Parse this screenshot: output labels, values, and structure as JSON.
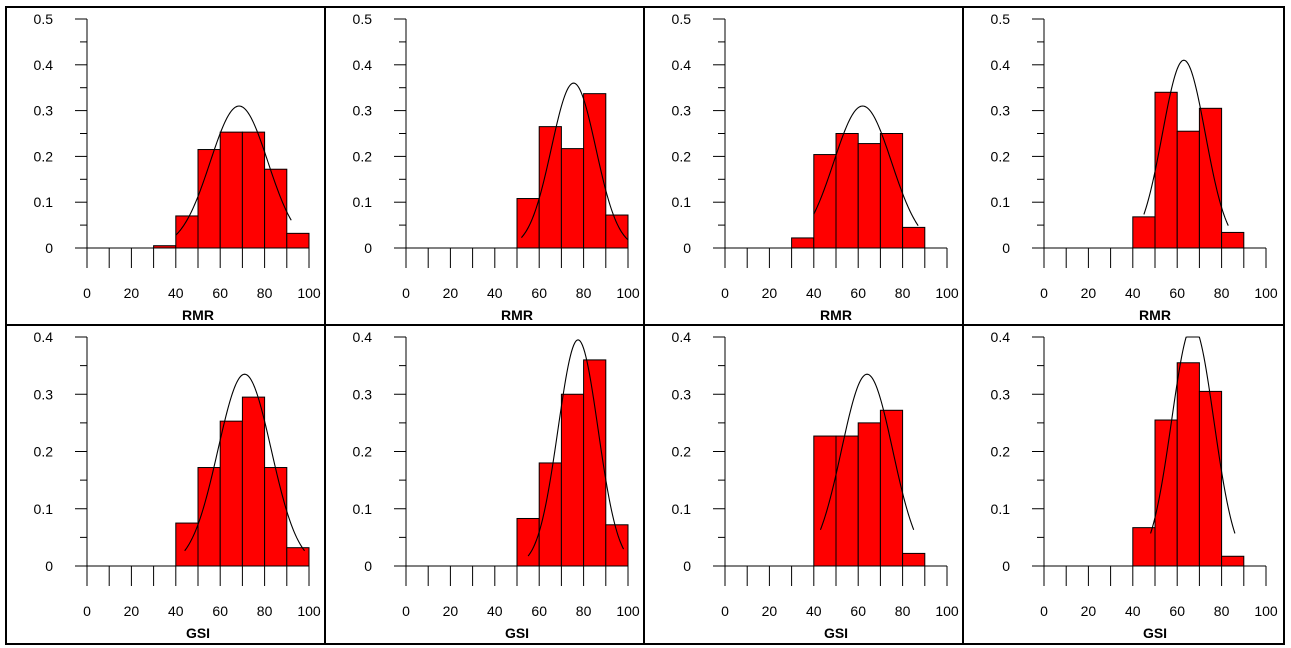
{
  "chart_data": [
    {
      "type": "bar",
      "xlabel": "RMR",
      "ylim": [
        0,
        0.5
      ],
      "yticks": [
        "0",
        "0.1",
        "0.2",
        "0.3",
        "0.4",
        "0.5"
      ],
      "xlim": [
        0,
        100
      ],
      "xticks": [
        "0",
        "20",
        "40",
        "60",
        "80",
        "100"
      ],
      "bins": [
        [
          30,
          40,
          0.005
        ],
        [
          40,
          50,
          0.07
        ],
        [
          50,
          60,
          0.215
        ],
        [
          60,
          70,
          0.253
        ],
        [
          70,
          80,
          0.253
        ],
        [
          80,
          90,
          0.172
        ],
        [
          90,
          100,
          0.032
        ]
      ],
      "curve": {
        "mean": 68.5,
        "peak": 0.31,
        "sd": 13,
        "from": 40,
        "to": 92
      }
    },
    {
      "type": "bar",
      "xlabel": "RMR",
      "ylim": [
        0,
        0.5
      ],
      "yticks": [
        "0",
        "0.1",
        "0.2",
        "0.3",
        "0.4",
        "0.5"
      ],
      "xlim": [
        0,
        100
      ],
      "xticks": [
        "0",
        "20",
        "40",
        "60",
        "80",
        "100"
      ],
      "bins": [
        [
          50,
          60,
          0.108
        ],
        [
          60,
          70,
          0.265
        ],
        [
          70,
          80,
          0.217
        ],
        [
          80,
          90,
          0.337
        ],
        [
          90,
          100,
          0.072
        ]
      ],
      "curve": {
        "mean": 75.5,
        "peak": 0.36,
        "sd": 10,
        "from": 52,
        "to": 100
      }
    },
    {
      "type": "bar",
      "xlabel": "RMR",
      "ylim": [
        0,
        0.5
      ],
      "yticks": [
        "0",
        "0.1",
        "0.2",
        "0.3",
        "0.4",
        "0.5"
      ],
      "xlim": [
        0,
        100
      ],
      "xticks": [
        "0",
        "20",
        "40",
        "60",
        "80",
        "100"
      ],
      "bins": [
        [
          30,
          40,
          0.022
        ],
        [
          40,
          50,
          0.204
        ],
        [
          50,
          60,
          0.25
        ],
        [
          60,
          70,
          0.228
        ],
        [
          70,
          80,
          0.25
        ],
        [
          80,
          90,
          0.045
        ]
      ],
      "curve": {
        "mean": 62,
        "peak": 0.31,
        "sd": 13,
        "from": 40,
        "to": 87
      }
    },
    {
      "type": "bar",
      "xlabel": "RMR",
      "ylim": [
        0,
        0.5
      ],
      "yticks": [
        "0",
        "0.1",
        "0.2",
        "0.3",
        "0.4",
        "0.5"
      ],
      "xlim": [
        0,
        100
      ],
      "xticks": [
        "0",
        "20",
        "40",
        "60",
        "80",
        "100"
      ],
      "bins": [
        [
          40,
          50,
          0.068
        ],
        [
          50,
          60,
          0.34
        ],
        [
          60,
          70,
          0.255
        ],
        [
          70,
          80,
          0.305
        ],
        [
          80,
          90,
          0.034
        ]
      ],
      "curve": {
        "mean": 63,
        "peak": 0.41,
        "sd": 9.7,
        "from": 45,
        "to": 83
      }
    },
    {
      "type": "bar",
      "xlabel": "GSI",
      "ylim": [
        0,
        0.4
      ],
      "yticks": [
        "0",
        "0.1",
        "0.2",
        "0.3",
        "0.4"
      ],
      "xlim": [
        0,
        100
      ],
      "xticks": [
        "0",
        "20",
        "40",
        "60",
        "80",
        "100"
      ],
      "bins": [
        [
          40,
          50,
          0.075
        ],
        [
          50,
          60,
          0.172
        ],
        [
          60,
          70,
          0.253
        ],
        [
          70,
          80,
          0.295
        ],
        [
          80,
          90,
          0.172
        ],
        [
          90,
          100,
          0.032
        ]
      ],
      "curve": {
        "mean": 71,
        "peak": 0.335,
        "sd": 12,
        "from": 44,
        "to": 98
      }
    },
    {
      "type": "bar",
      "xlabel": "GSI",
      "ylim": [
        0,
        0.4
      ],
      "yticks": [
        "0",
        "0.1",
        "0.2",
        "0.3",
        "0.4"
      ],
      "xlim": [
        0,
        100
      ],
      "xticks": [
        "0",
        "20",
        "40",
        "60",
        "80",
        "100"
      ],
      "bins": [
        [
          50,
          60,
          0.083
        ],
        [
          60,
          70,
          0.18
        ],
        [
          70,
          80,
          0.3
        ],
        [
          80,
          90,
          0.36
        ],
        [
          90,
          100,
          0.072
        ]
      ],
      "curve": {
        "mean": 77.5,
        "peak": 0.395,
        "sd": 9,
        "from": 55,
        "to": 98
      }
    },
    {
      "type": "bar",
      "xlabel": "GSI",
      "ylim": [
        0,
        0.4
      ],
      "yticks": [
        "0",
        "0.1",
        "0.2",
        "0.3",
        "0.4"
      ],
      "xlim": [
        0,
        100
      ],
      "xticks": [
        "0",
        "20",
        "40",
        "60",
        "80",
        "100"
      ],
      "bins": [
        [
          40,
          50,
          0.227
        ],
        [
          50,
          60,
          0.227
        ],
        [
          60,
          70,
          0.25
        ],
        [
          70,
          80,
          0.272
        ],
        [
          80,
          90,
          0.022
        ]
      ],
      "curve": {
        "mean": 64,
        "peak": 0.335,
        "sd": 11.5,
        "from": 43,
        "to": 85
      }
    },
    {
      "type": "bar",
      "xlabel": "GSI",
      "ylim": [
        0,
        0.4
      ],
      "yticks": [
        "0",
        "0.1",
        "0.2",
        "0.3",
        "0.4"
      ],
      "xlim": [
        0,
        100
      ],
      "xticks": [
        "0",
        "20",
        "40",
        "60",
        "80",
        "100"
      ],
      "bins": [
        [
          40,
          50,
          0.067
        ],
        [
          50,
          60,
          0.255
        ],
        [
          60,
          70,
          0.355
        ],
        [
          70,
          80,
          0.305
        ],
        [
          80,
          90,
          0.017
        ]
      ],
      "curve": {
        "mean": 67,
        "peak": 0.42,
        "sd": 9.5,
        "cap": 0.4,
        "from": 48,
        "to": 86
      }
    }
  ],
  "colors": {
    "bar_fill": "#ff0000",
    "bar_stroke": "#000000",
    "curve": "#000000",
    "axis": "#000000"
  }
}
